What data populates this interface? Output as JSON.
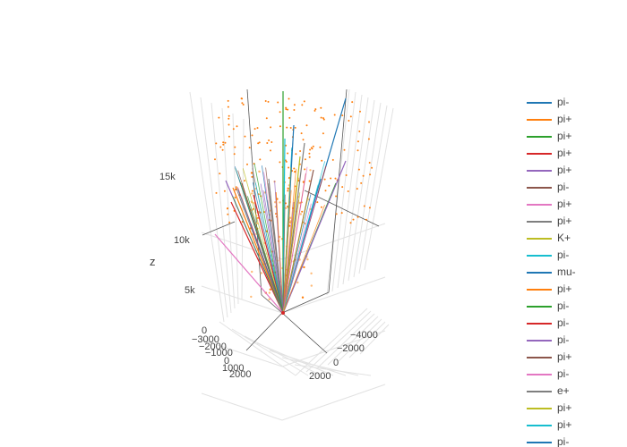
{
  "chart_data": {
    "type": "line3d",
    "zlabel": "z",
    "z_ticks": [
      "0",
      "5k",
      "10k",
      "15k"
    ],
    "x_ticks": [
      "−4000",
      "−2000",
      "0",
      "2000"
    ],
    "y_ticks": [
      "−3000",
      "−2000",
      "−1000",
      "0",
      "1000",
      "2000"
    ],
    "legend_placement": "right",
    "grid": true,
    "vertex": {
      "x": 0,
      "y": 0,
      "z": 0
    },
    "series": [
      {
        "name": "pi-",
        "color": "#1f77b4"
      },
      {
        "name": "pi+",
        "color": "#ff7f0e"
      },
      {
        "name": "pi+",
        "color": "#2ca02c"
      },
      {
        "name": "pi+",
        "color": "#d62728"
      },
      {
        "name": "pi+",
        "color": "#9467bd"
      },
      {
        "name": "pi-",
        "color": "#8c564b"
      },
      {
        "name": "pi+",
        "color": "#e377c2"
      },
      {
        "name": "pi+",
        "color": "#7f7f7f"
      },
      {
        "name": "K+",
        "color": "#bcbd22"
      },
      {
        "name": "pi-",
        "color": "#17becf"
      },
      {
        "name": "mu-",
        "color": "#1f77b4"
      },
      {
        "name": "pi+",
        "color": "#ff7f0e"
      },
      {
        "name": "pi-",
        "color": "#2ca02c"
      },
      {
        "name": "pi-",
        "color": "#d62728"
      },
      {
        "name": "pi-",
        "color": "#9467bd"
      },
      {
        "name": "pi+",
        "color": "#8c564b"
      },
      {
        "name": "pi-",
        "color": "#e377c2"
      },
      {
        "name": "e+",
        "color": "#7f7f7f"
      },
      {
        "name": "pi+",
        "color": "#bcbd22"
      },
      {
        "name": "pi+",
        "color": "#17becf"
      },
      {
        "name": "pi-",
        "color": "#1f77b4"
      }
    ],
    "scatter_color": "#ff7f0e"
  }
}
